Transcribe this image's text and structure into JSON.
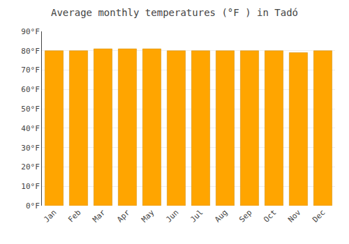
{
  "chart_data": {
    "type": "bar",
    "title": "Average monthly temperatures (°F ) in Tadó",
    "categories": [
      "Jan",
      "Feb",
      "Mar",
      "Apr",
      "May",
      "Jun",
      "Jul",
      "Aug",
      "Sep",
      "Oct",
      "Nov",
      "Dec"
    ],
    "values": [
      80,
      80,
      81,
      81,
      81,
      80,
      80,
      80,
      80,
      80,
      79,
      80
    ],
    "color": "#FFA500",
    "ylim": [
      0,
      90
    ],
    "yticks": [
      {
        "value": 0,
        "label": "0°F"
      },
      {
        "value": 10,
        "label": "10°F"
      },
      {
        "value": 20,
        "label": "20°F"
      },
      {
        "value": 30,
        "label": "30°F"
      },
      {
        "value": 40,
        "label": "40°F"
      },
      {
        "value": 50,
        "label": "50°F"
      },
      {
        "value": 60,
        "label": "60°F"
      },
      {
        "value": 70,
        "label": "70°F"
      },
      {
        "value": 80,
        "label": "80°F"
      },
      {
        "value": 90,
        "label": "90°F"
      }
    ],
    "grid": true
  }
}
